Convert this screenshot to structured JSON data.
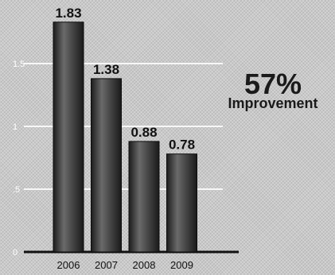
{
  "chart_data": {
    "type": "bar",
    "title": "",
    "xlabel": "",
    "ylabel": "",
    "categories": [
      "2006",
      "2007",
      "2008",
      "2009"
    ],
    "values": [
      1.83,
      1.38,
      0.88,
      0.78
    ],
    "value_labels": [
      "1.83",
      "1.38",
      "0.88",
      "0.78"
    ],
    "yticks": [
      0,
      0.5,
      1,
      1.5
    ],
    "ytick_labels": [
      "0",
      ".5",
      "1",
      "1.5"
    ],
    "ylim": [
      0,
      1.93
    ],
    "grid": true,
    "legend": "none",
    "callout": {
      "value": "57%",
      "text": "Improvement"
    },
    "colors": {
      "bar": "#3a3a3a",
      "gridline": "#ffffff",
      "callout": "#1a1a1a",
      "background": "#c9c9c9"
    }
  }
}
